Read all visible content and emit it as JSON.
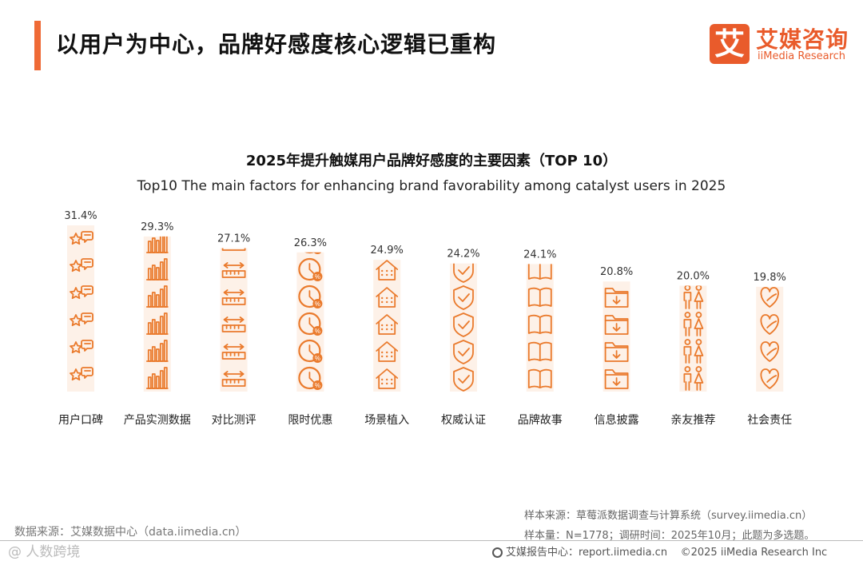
{
  "header": {
    "title": "以用户为中心，品牌好感度核心逻辑已重构",
    "logo_mark": "艾",
    "logo_cn": "艾媒咨询",
    "logo_en": "iiMedia Research"
  },
  "colors": {
    "accent": "#ef6a36",
    "icon": "#ea7a2c",
    "icon_bg": "#fdf1e8"
  },
  "chart_data": {
    "type": "bar",
    "title": "2025年提升触媒用户品牌好感度的主要因素（TOP 10）",
    "subtitle": "Top10 The main factors for enhancing brand favorability among catalyst users in 2025",
    "categories": [
      "用户口碑",
      "产品实测数据",
      "对比测评",
      "限时优惠",
      "场景植入",
      "权威认证",
      "品牌故事",
      "信息披露",
      "亲友推荐",
      "社会责任"
    ],
    "values": [
      31.4,
      29.3,
      27.1,
      26.3,
      24.9,
      24.2,
      24.1,
      20.8,
      20.0,
      19.8
    ],
    "value_labels": [
      "31.4%",
      "29.3%",
      "27.1%",
      "26.3%",
      "24.9%",
      "24.2%",
      "24.1%",
      "20.8%",
      "20.0%",
      "19.8%"
    ],
    "icons": [
      "star-chat",
      "bar-chart",
      "ruler",
      "clock-percent",
      "house",
      "shield-check",
      "book",
      "folder-down",
      "couple",
      "heart-leaf"
    ],
    "unit": "%",
    "ylim": [
      0,
      31.4
    ]
  },
  "sources": {
    "left": "数据来源：艾媒数据中心（data.iimedia.cn）",
    "sample_source": "样本来源：草莓派数据调查与计算系统（survey.iimedia.cn）",
    "sample_info": "样本量：N=1778；调研时间：2025年10月；此题为多选题。"
  },
  "footer": {
    "watermark": "@ 人数跨境",
    "report_center": "艾媒报告中心：report.iimedia.cn",
    "copyright": "©2025  iiMedia Research  Inc"
  }
}
